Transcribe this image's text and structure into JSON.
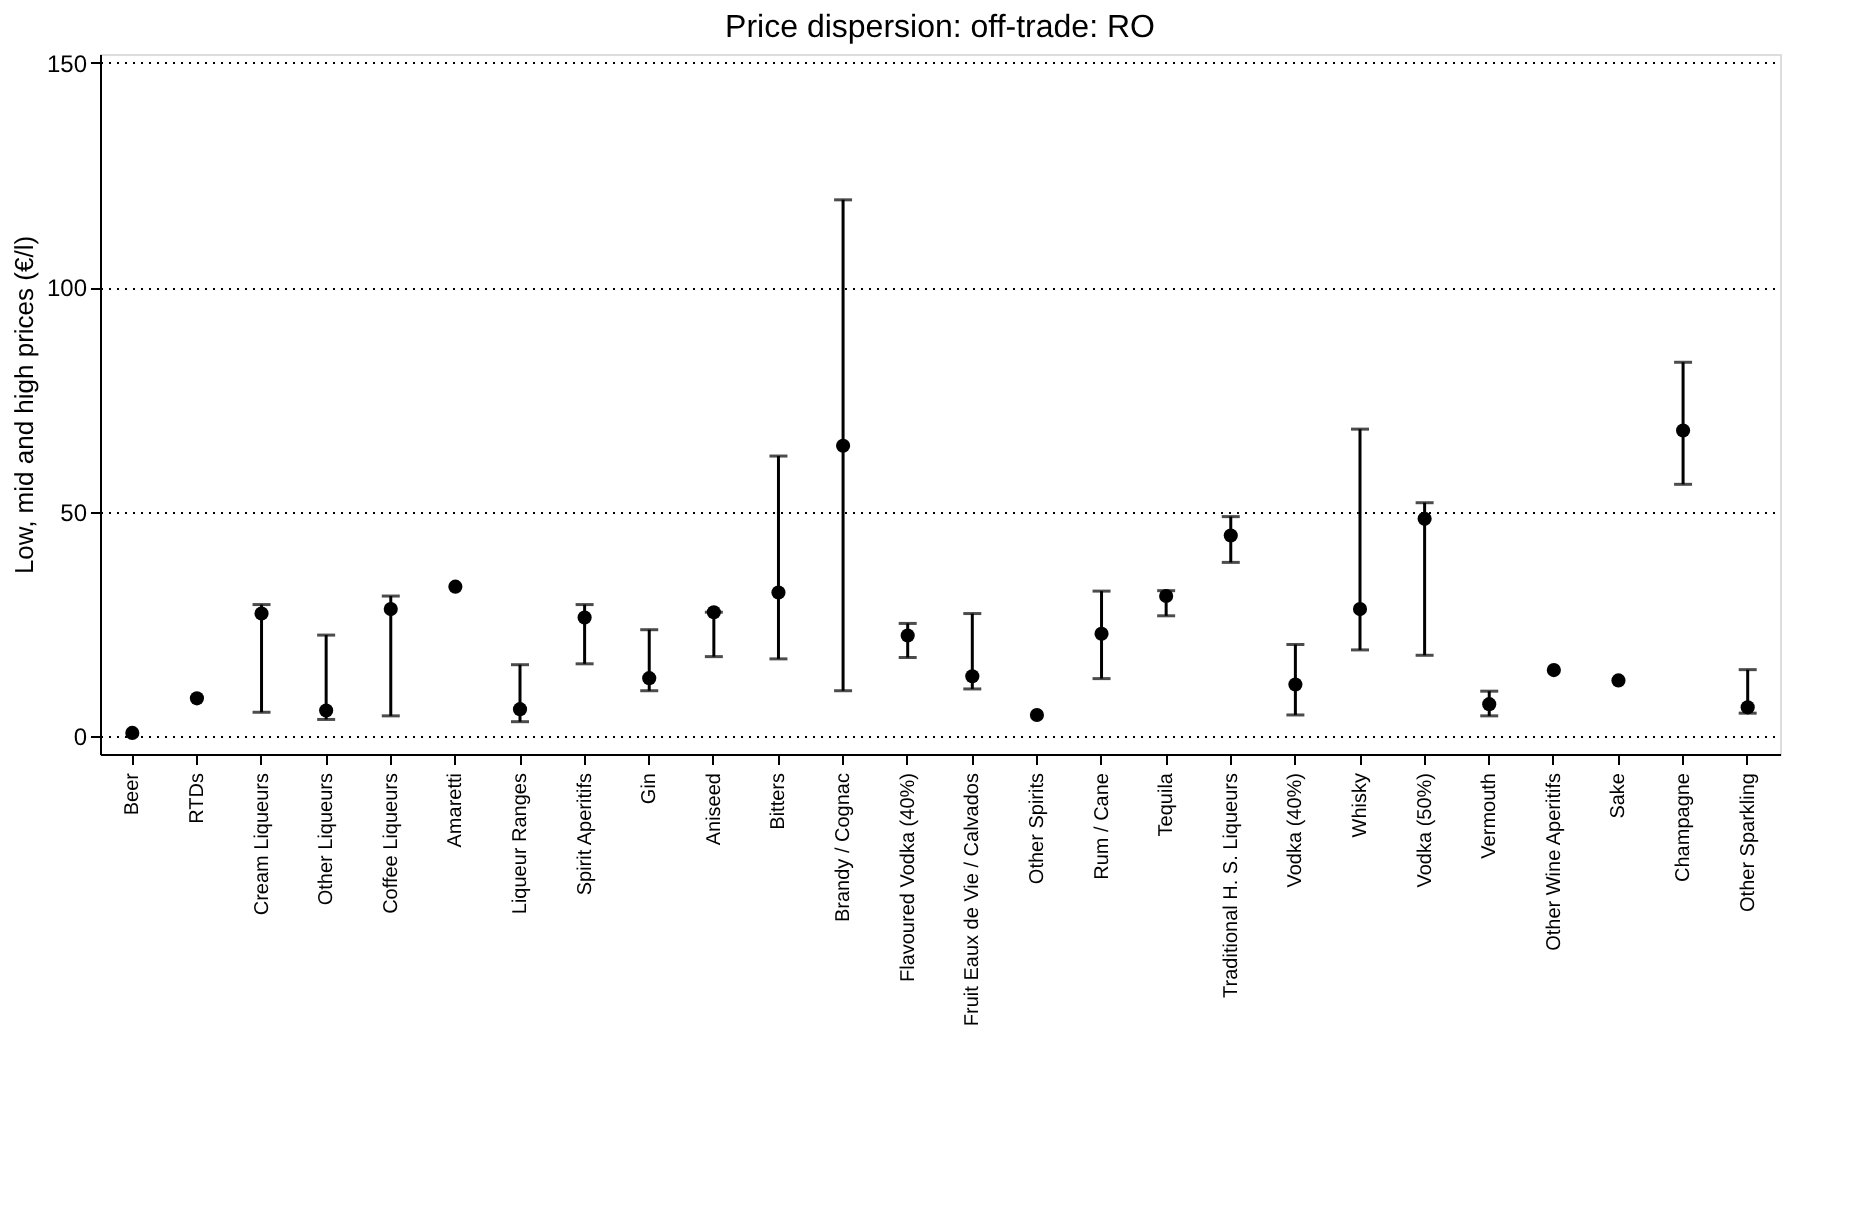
{
  "chart_data": {
    "type": "scatter",
    "title": "Price dispersion: off-trade: RO",
    "ylabel": "Low, mid and high prices (€/l)",
    "categories": [
      "Beer",
      "RTDs",
      "Cream Liqueurs",
      "Other Liqueurs",
      "Coffee Liqueurs",
      "Amaretti",
      "Liqueur Ranges",
      "Spirit Aperitifs",
      "Gin",
      "Aniseed",
      "Bitters",
      "Brandy / Cognac",
      "Flavoured Vodka (40%)",
      "Fruit Eaux de Vie / Calvados",
      "Other Spirits",
      "Rum / Cane",
      "Tequila",
      "Traditional H. S. Liqueurs",
      "Vodka (40%)",
      "Whisky",
      "Vodka (50%)",
      "Vermouth",
      "Other Wine Aperitifs",
      "Sake",
      "Champagne",
      "Other Sparkling"
    ],
    "series": [
      {
        "color": "#000000",
        "values": [
          0.7,
          8.4,
          27.3,
          5.7,
          28.3,
          33.3,
          6,
          26.4,
          12.9,
          27.6,
          32,
          64.7,
          22.4,
          13.3,
          4.7,
          22.8,
          31.2,
          44.7,
          11.5,
          28.3,
          48.4,
          7.1,
          14.7,
          12.4,
          68.1,
          6.4
        ],
        "errors": [
          null,
          null,
          [
            5.3,
            29.3
          ],
          [
            3.7,
            22.5
          ],
          [
            4.5,
            31.2
          ],
          null,
          [
            3.2,
            15.9
          ],
          [
            16.1,
            29.3
          ],
          [
            10.1,
            23.7
          ],
          [
            17.7,
            27.6
          ],
          [
            17.2,
            62.4
          ],
          [
            10.1,
            119.5
          ],
          [
            17.5,
            25.1
          ],
          [
            10.5,
            27.3
          ],
          null,
          [
            12.8,
            32.3
          ],
          [
            26.8,
            32.4
          ],
          [
            38.7,
            48.9
          ],
          [
            4.7,
            20.4
          ],
          [
            19.2,
            68.4
          ],
          [
            18,
            52
          ],
          [
            4.5,
            10
          ],
          null,
          null,
          [
            56.1,
            83.3
          ],
          [
            5.1,
            14.8
          ]
        ]
      }
    ],
    "ylim": [
      -4,
      152
    ],
    "yticks": [
      0,
      50,
      100,
      150
    ],
    "grid": "y",
    "marker": "circle"
  }
}
